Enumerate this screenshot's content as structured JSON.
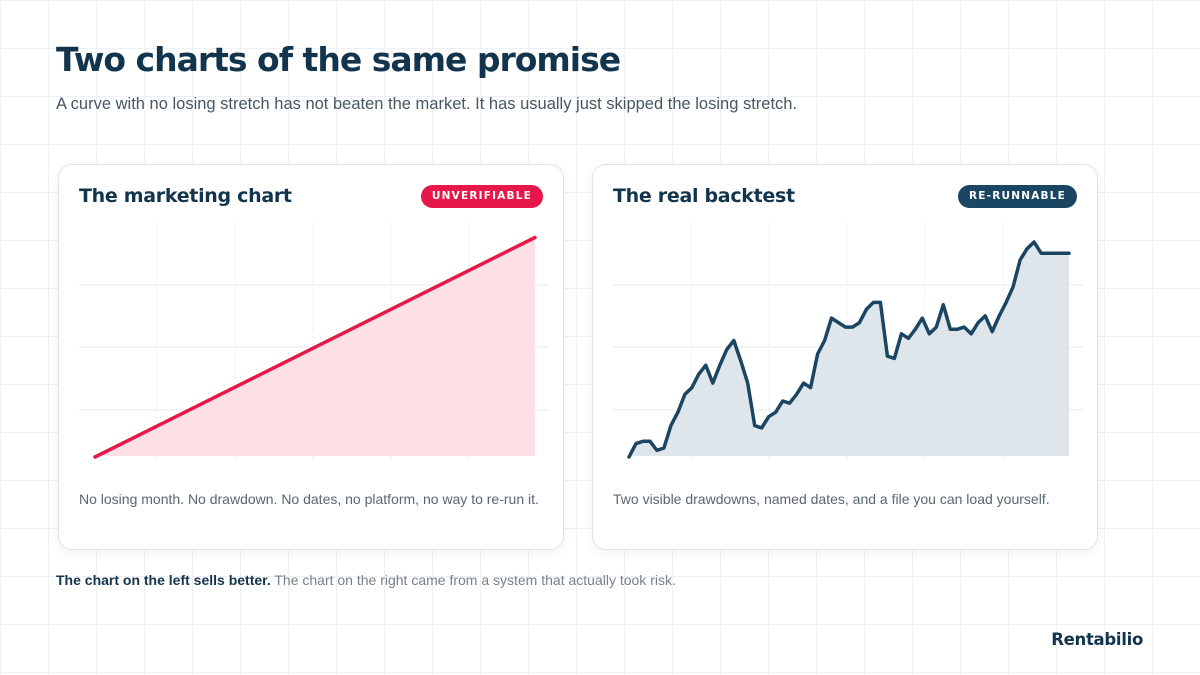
{
  "header": {
    "title": "Two charts of the same promise",
    "subtitle": "A curve with no losing stretch has not beaten the market. It has usually just skipped the losing stretch."
  },
  "cards": {
    "left": {
      "title": "The marketing chart",
      "badge": "UNVERIFIABLE",
      "caption": "No losing month. No drawdown. No dates, no platform, no way to re-run it."
    },
    "right": {
      "title": "The real backtest",
      "badge": "RE-RUNNABLE",
      "caption": "Two visible drawdowns, named dates, and a file you can load yourself."
    }
  },
  "footnote": {
    "strong": "The chart on the left sells better.",
    "rest": " The chart on the right came from a system that actually took risk."
  },
  "brand": {
    "name": "Rentabilio"
  },
  "colors": {
    "accent_red": "#e8174a",
    "red_fill": "#fde0e6",
    "navy": "#1b4663",
    "navy_fill": "#dfe6eb"
  },
  "chart_data": [
    {
      "type": "area",
      "ylim": [
        0,
        100
      ],
      "grid": true,
      "x": [
        0,
        1
      ],
      "values": [
        0,
        98
      ],
      "color": "#e8174a",
      "fill": "#fde0e6"
    },
    {
      "type": "area",
      "ylim": [
        0,
        100
      ],
      "grid": true,
      "x": [
        0,
        1,
        2,
        3,
        4,
        5,
        6,
        7,
        8,
        9,
        10,
        11,
        12,
        13,
        14,
        15,
        16,
        17,
        18,
        19,
        20,
        21,
        22,
        23,
        24,
        25,
        26,
        27,
        28,
        29,
        30,
        31,
        32,
        33,
        34,
        35,
        36,
        37,
        38,
        39,
        40,
        41,
        42,
        43,
        44,
        45,
        46,
        47,
        48,
        49,
        50,
        51,
        52,
        53,
        54,
        55,
        56,
        57,
        58,
        59,
        60,
        61,
        62,
        63
      ],
      "values": [
        0,
        6,
        7,
        7,
        3,
        4,
        14,
        20,
        28,
        31,
        37,
        41,
        33,
        41,
        48,
        52,
        43,
        33,
        14,
        13,
        18,
        20,
        25,
        24,
        28,
        33,
        31,
        46,
        52,
        62,
        60,
        58,
        58,
        60,
        66,
        69,
        69,
        45,
        44,
        55,
        53,
        57,
        62,
        55,
        58,
        68,
        57,
        57,
        58,
        55,
        60,
        63,
        56,
        63,
        69,
        76,
        88,
        93,
        96,
        91,
        91,
        91,
        91,
        91
      ],
      "color": "#1b4663",
      "fill": "#dfe6eb"
    }
  ]
}
